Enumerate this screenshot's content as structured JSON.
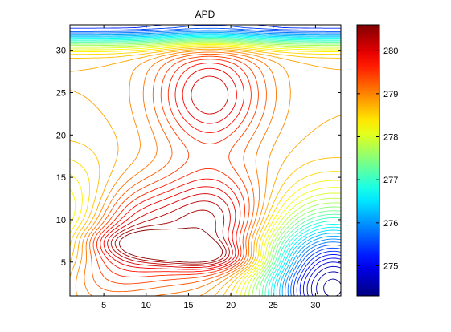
{
  "chart_data": {
    "type": "contour",
    "title": "APD",
    "xlabel": "",
    "ylabel": "",
    "xlim": [
      1,
      33
    ],
    "ylim": [
      1,
      33
    ],
    "x_ticks": [
      5,
      10,
      15,
      20,
      25,
      30
    ],
    "y_ticks": [
      5,
      10,
      15,
      20,
      25,
      30
    ],
    "grid": false,
    "colormap": "jet",
    "colorbar": {
      "clim": [
        274.3,
        280.6
      ],
      "ticks": [
        275,
        276,
        277,
        278,
        279,
        280
      ],
      "placement": "right"
    },
    "features": [
      {
        "kind": "maximum",
        "x": 17.5,
        "y": 24.8,
        "value": 280.2
      },
      {
        "kind": "maximum",
        "x": 18,
        "y": 9.5,
        "value": 280.4
      },
      {
        "kind": "maximum",
        "x": 8,
        "y": 8,
        "value": 280.6
      },
      {
        "kind": "maximum",
        "x": 2,
        "y": 3.5,
        "value": 280.6
      },
      {
        "kind": "minimum",
        "x": 32,
        "y": 2,
        "value": 274.3
      },
      {
        "kind": "minimum",
        "x": 1,
        "y": 6,
        "value": 276.5
      },
      {
        "kind": "gradient",
        "y": 32.5,
        "value": 275.2
      }
    ]
  }
}
